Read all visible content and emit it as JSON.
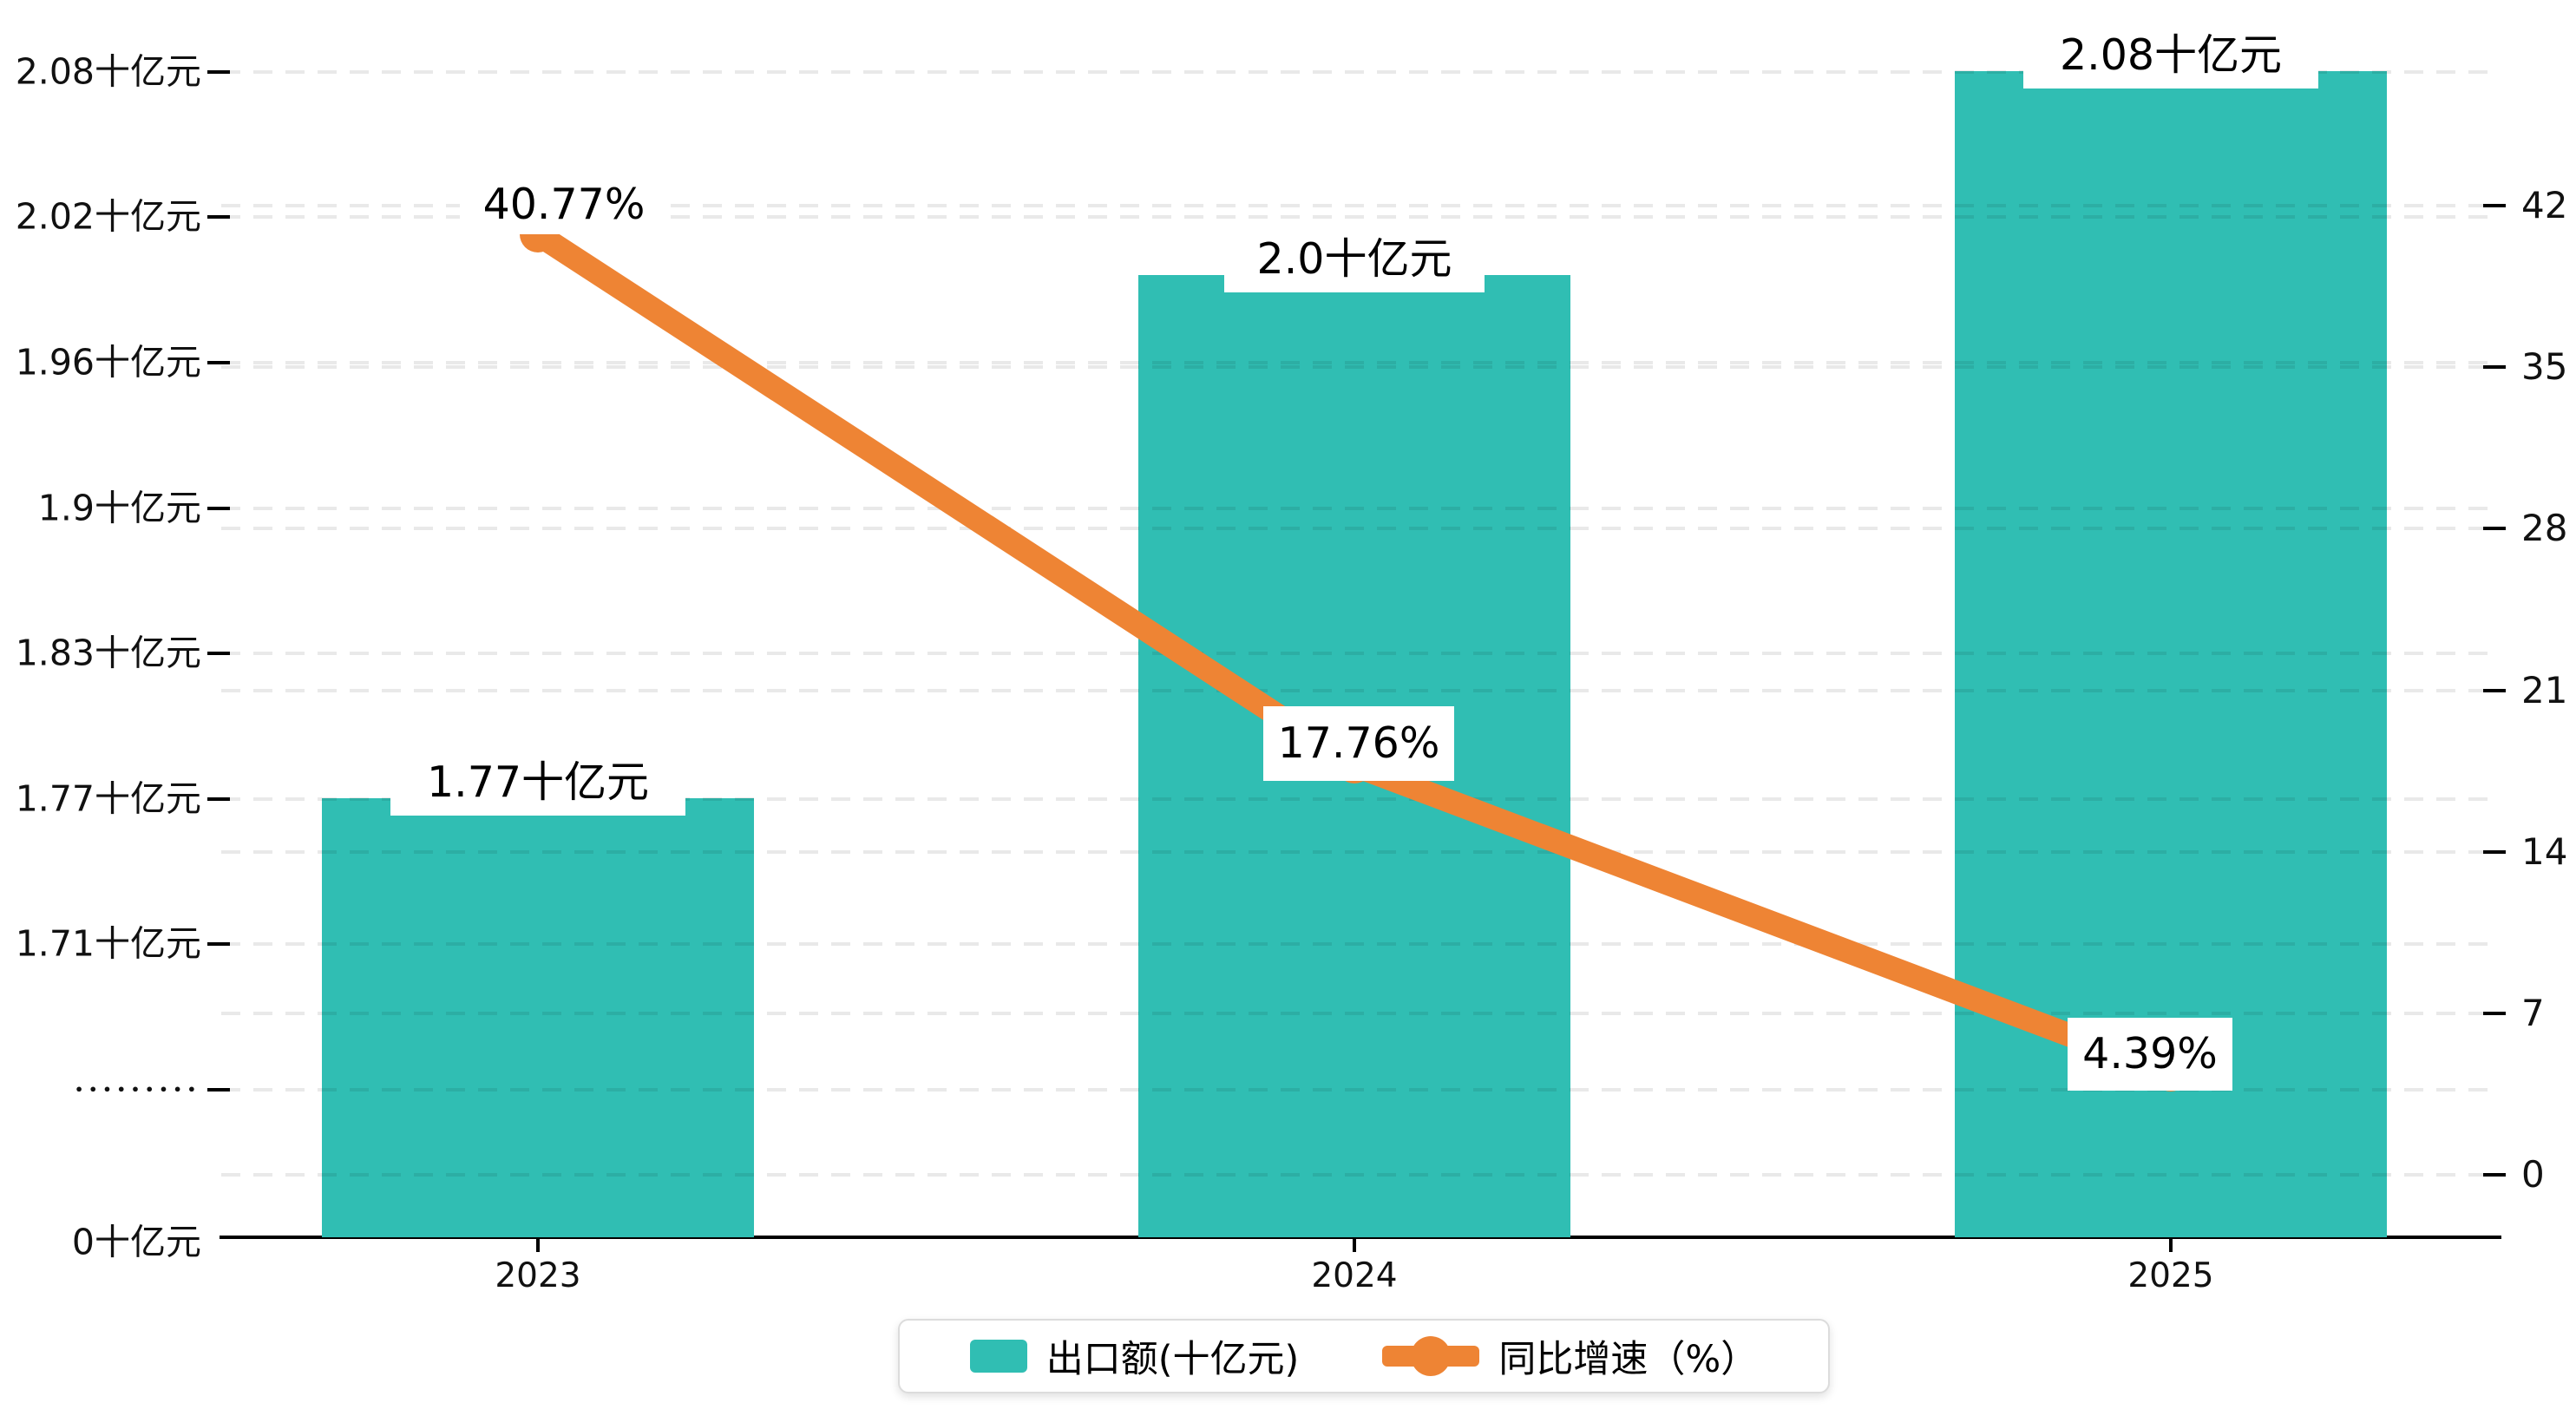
{
  "colors": {
    "bar": "#30BEB3",
    "line": "#EE8434",
    "axis": "#000000",
    "grid": "rgba(0,0,0,0.085)"
  },
  "chart_data": {
    "type": "combo",
    "subtype": [
      "bar",
      "line"
    ],
    "categories": [
      "2023",
      "2024",
      "2025"
    ],
    "series": [
      {
        "name": "出口额(十亿元)",
        "type": "bar",
        "axis": "left",
        "unit": "十亿元",
        "values": [
          1.77,
          2.0,
          2.08
        ],
        "labels": [
          "1.77十亿元",
          "2.0十亿元",
          "2.08十亿元"
        ],
        "color": "#30BEB3"
      },
      {
        "name": "同比增速（%）",
        "type": "line",
        "axis": "right",
        "unit": "%",
        "values": [
          40.77,
          17.76,
          4.39
        ],
        "labels": [
          "40.77%",
          "17.76%",
          "4.39%"
        ],
        "color": "#EE8434"
      }
    ],
    "left_axis": {
      "broken_axis": true,
      "tick_labels": [
        "2.08十亿元",
        "2.02十亿元",
        "1.96十亿元",
        "1.9十亿元",
        "1.83十亿元",
        "1.77十亿元",
        "1.71十亿元",
        "•••••••••",
        "0十亿元"
      ]
    },
    "right_axis": {
      "tick_labels": [
        "42",
        "35",
        "28",
        "21",
        "14",
        "7",
        "0"
      ],
      "range": [
        0,
        45.5
      ]
    },
    "grid": true,
    "legend_position": "bottom"
  },
  "legend": {
    "items": [
      {
        "label": "出口额(十亿元)",
        "marker": "rect",
        "color": "#30BEB3"
      },
      {
        "label": "同比增速（%）",
        "marker": "line-dot",
        "color": "#EE8434"
      }
    ]
  }
}
